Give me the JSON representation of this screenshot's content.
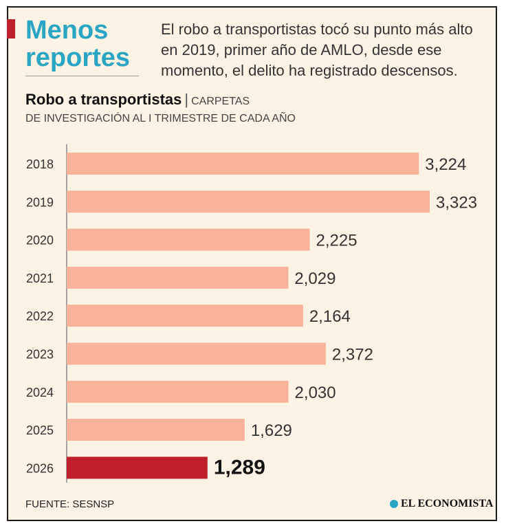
{
  "header": {
    "headline_line1": "Menos",
    "headline_line2": "reportes",
    "intro": "El robo a transportistas tocó su punto más alto en 2019, primer año de AMLO, desde ese momento, el delito ha registrado descensos."
  },
  "chart_data": {
    "type": "bar",
    "orientation": "horizontal",
    "title": "Robo a transportistas",
    "subtitle_part1": "CARPETAS",
    "subtitle_part2": "DE INVESTIGACIÓN AL I TRIMESTRE DE CADA AÑO",
    "categories": [
      "2018",
      "2019",
      "2020",
      "2021",
      "2022",
      "2023",
      "2024",
      "2025",
      "2026"
    ],
    "values": [
      3224,
      3323,
      2225,
      2029,
      2164,
      2372,
      2030,
      1629,
      1289
    ],
    "value_labels": [
      "3,224",
      "3,323",
      "2,225",
      "2,029",
      "2,164",
      "2,372",
      "2,030",
      "1,629",
      "1,289"
    ],
    "highlight_index": 8,
    "colors": {
      "bar": "#f9b39a",
      "highlight": "#c0202a",
      "axis": "#888888"
    },
    "xlim": [
      0,
      3323
    ]
  },
  "footer": {
    "source": "FUENTE: SESNSP",
    "brand": "EL ECONOMISTA"
  }
}
